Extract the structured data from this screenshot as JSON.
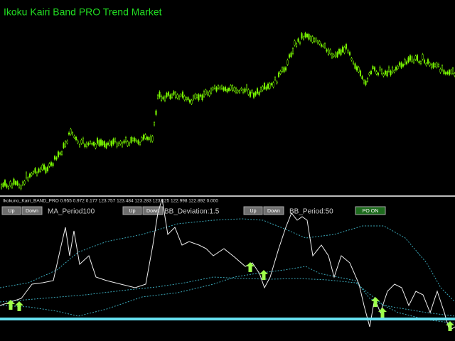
{
  "header": {
    "title": "Ikoku Kairi Band PRO Trend Market"
  },
  "indicator": {
    "label": "Ikokuno_Kairi_BAND_PRO 0.955 0.972 0.177 123.757 123.484 123.283 123.125 122.998 122.892 0.000",
    "controls": [
      {
        "up": "Up",
        "down": "Down",
        "param": "MA_Period100"
      },
      {
        "up": "Up",
        "down": "Down",
        "param": "BB_Deviation:1.5"
      },
      {
        "up": "Up",
        "down": "Down",
        "param": "BB_Period:50"
      }
    ],
    "toggle": "PO ON"
  }
}
